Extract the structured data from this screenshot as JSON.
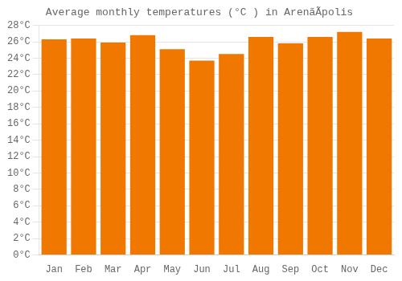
{
  "chart_data": {
    "type": "bar",
    "title": "Average monthly temperatures (°C ) in ArenãÃpolis",
    "categories": [
      "Jan",
      "Feb",
      "Mar",
      "Apr",
      "May",
      "Jun",
      "Jul",
      "Aug",
      "Sep",
      "Oct",
      "Nov",
      "Dec"
    ],
    "values": [
      26.3,
      26.4,
      25.9,
      26.8,
      25.1,
      23.7,
      24.5,
      26.6,
      25.8,
      26.6,
      27.2,
      26.4
    ],
    "color": "#F07800",
    "ylim": [
      0,
      28
    ],
    "yticks": [
      {
        "value": 0,
        "label": "0°C"
      },
      {
        "value": 2,
        "label": "2°C"
      },
      {
        "value": 4,
        "label": "4°C"
      },
      {
        "value": 6,
        "label": "6°C"
      },
      {
        "value": 8,
        "label": "8°C"
      },
      {
        "value": 10,
        "label": "10°C"
      },
      {
        "value": 12,
        "label": "12°C"
      },
      {
        "value": 14,
        "label": "14°C"
      },
      {
        "value": 16,
        "label": "16°C"
      },
      {
        "value": 18,
        "label": "18°C"
      },
      {
        "value": 20,
        "label": "20°C"
      },
      {
        "value": 22,
        "label": "22°C"
      },
      {
        "value": 24,
        "label": "24°C"
      },
      {
        "value": 26,
        "label": "26°C"
      },
      {
        "value": 28,
        "label": "28°C"
      }
    ],
    "grid": true
  }
}
